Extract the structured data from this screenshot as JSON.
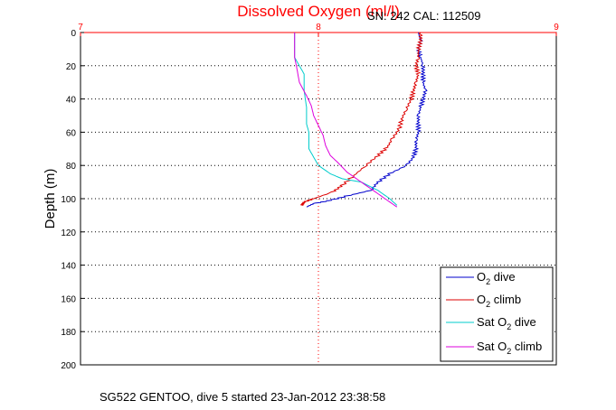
{
  "chart_data": {
    "type": "line",
    "title": "Dissolved Oxygen (ml/l)",
    "subtitle": "SN: 242  CAL: 112509",
    "ylabel": "Depth (m)",
    "xlabel": "",
    "caption": "SG522 GENTOO, dive 5 started 23-Jan-2012 23:38:58",
    "xlim": [
      7,
      9
    ],
    "ylim": [
      0,
      200
    ],
    "y_reversed": true,
    "x_axis_position": "top",
    "xticks": [
      "7",
      "8",
      "9"
    ],
    "yticks": [
      "0",
      "20",
      "40",
      "60",
      "80",
      "100",
      "120",
      "140",
      "160",
      "180",
      "200"
    ],
    "grid": true,
    "legend_placement": "bottom-right",
    "series": [
      {
        "name": "O2 dive",
        "legend": {
          "base": "O",
          "sub": "2",
          "rest": " dive"
        },
        "color": "#0000cc",
        "points": [
          [
            8.42,
            0
          ],
          [
            8.43,
            5
          ],
          [
            8.42,
            10
          ],
          [
            8.43,
            15
          ],
          [
            8.44,
            20
          ],
          [
            8.44,
            25
          ],
          [
            8.44,
            30
          ],
          [
            8.45,
            35
          ],
          [
            8.44,
            40
          ],
          [
            8.43,
            45
          ],
          [
            8.42,
            50
          ],
          [
            8.42,
            55
          ],
          [
            8.42,
            60
          ],
          [
            8.41,
            65
          ],
          [
            8.41,
            70
          ],
          [
            8.4,
            75
          ],
          [
            8.37,
            80
          ],
          [
            8.3,
            85
          ],
          [
            8.25,
            90
          ],
          [
            8.22,
            95
          ],
          [
            8.13,
            98
          ],
          [
            8.05,
            101
          ],
          [
            7.98,
            103
          ],
          [
            7.95,
            105
          ]
        ]
      },
      {
        "name": "O2 climb",
        "legend": {
          "base": "O",
          "sub": "2",
          "rest": " climb"
        },
        "color": "#dd0000",
        "points": [
          [
            7.93,
            104
          ],
          [
            7.94,
            102
          ],
          [
            7.98,
            100
          ],
          [
            8.06,
            96
          ],
          [
            8.1,
            92
          ],
          [
            8.15,
            86
          ],
          [
            8.2,
            80
          ],
          [
            8.25,
            74
          ],
          [
            8.29,
            69
          ],
          [
            8.31,
            64
          ],
          [
            8.34,
            58
          ],
          [
            8.35,
            52
          ],
          [
            8.37,
            46
          ],
          [
            8.39,
            40
          ],
          [
            8.4,
            35
          ],
          [
            8.41,
            30
          ],
          [
            8.42,
            25
          ],
          [
            8.41,
            20
          ],
          [
            8.42,
            15
          ],
          [
            8.42,
            10
          ],
          [
            8.43,
            5
          ],
          [
            8.43,
            0
          ]
        ]
      },
      {
        "name": "Sat O2 dive",
        "legend": {
          "base": "Sat O",
          "sub": "2",
          "rest": " dive"
        },
        "color": "#00cccc",
        "points": [
          [
            7.9,
            0
          ],
          [
            7.9,
            10
          ],
          [
            7.9,
            15
          ],
          [
            7.92,
            20
          ],
          [
            7.94,
            25
          ],
          [
            7.94,
            35
          ],
          [
            7.95,
            45
          ],
          [
            7.95,
            55
          ],
          [
            7.96,
            60
          ],
          [
            7.96,
            70
          ],
          [
            7.98,
            75
          ],
          [
            8.0,
            80
          ],
          [
            8.05,
            85
          ],
          [
            8.1,
            88
          ],
          [
            8.18,
            90
          ],
          [
            8.25,
            95
          ],
          [
            8.3,
            100
          ],
          [
            8.33,
            104
          ]
        ]
      },
      {
        "name": "Sat O2 climb",
        "legend": {
          "base": "Sat O",
          "sub": "2",
          "rest": " climb"
        },
        "color": "#dd00dd",
        "points": [
          [
            8.33,
            105
          ],
          [
            8.28,
            100
          ],
          [
            8.25,
            97
          ],
          [
            8.2,
            92
          ],
          [
            8.16,
            88
          ],
          [
            8.12,
            84
          ],
          [
            8.08,
            78
          ],
          [
            8.05,
            74
          ],
          [
            8.03,
            68
          ],
          [
            8.02,
            62
          ],
          [
            8.0,
            56
          ],
          [
            7.98,
            50
          ],
          [
            7.97,
            44
          ],
          [
            7.95,
            38
          ],
          [
            7.92,
            30
          ],
          [
            7.91,
            22
          ],
          [
            7.9,
            15
          ],
          [
            7.9,
            8
          ],
          [
            7.9,
            0
          ]
        ]
      }
    ]
  }
}
